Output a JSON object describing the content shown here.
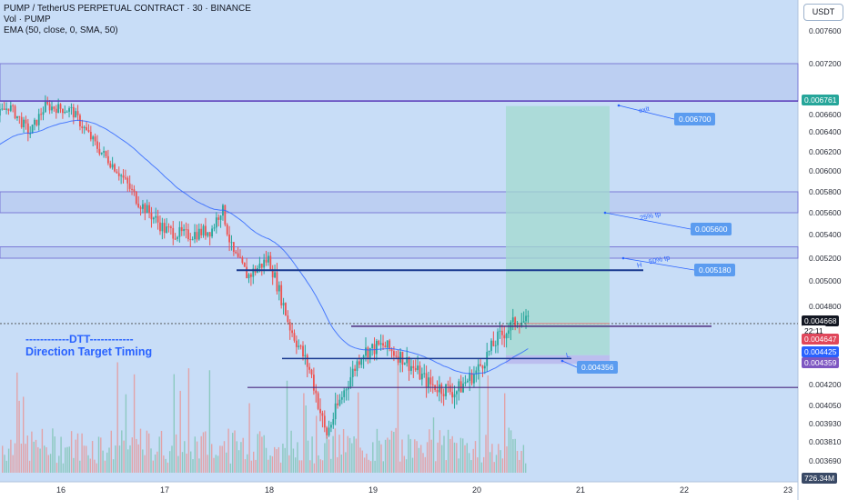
{
  "header": {
    "symbol_line": "PUMP / TetherUS PERPETUAL CONTRACT · 30 · BINANCE",
    "vol_line": "Vol · PUMP",
    "ema_line": "EMA (50, close, 0, SMA, 50)"
  },
  "currency_button": "USDT",
  "watermark": {
    "line1": "------------DTT------------",
    "line2": "Direction Target Timing"
  },
  "price_axis_labels": [
    "0.007600",
    "0.007200",
    "0.006600",
    "0.006400",
    "0.006200",
    "0.006000",
    "0.005800",
    "0.005600",
    "0.005400",
    "0.005200",
    "0.005000",
    "0.004800",
    "0.004200",
    "0.004050",
    "0.003930",
    "0.003810",
    "0.003690"
  ],
  "price_badges": {
    "top_zone": "0.006761",
    "last_price": "0.004668",
    "countdown": "22:11",
    "red_line": "0.004647",
    "entry": "0.004425",
    "stop": "0.004359",
    "volume": "726.34M"
  },
  "annotations": {
    "exit_label": "exit",
    "exit_value": "0.006700",
    "tp25_label": "25% tp",
    "tp25_value": "0.005600",
    "tp50_label": "50% tp",
    "tp50_value": "0.005180",
    "h_label": "H",
    "l_label": "L",
    "low_value": "0.004356"
  },
  "chart_data": {
    "type": "candlestick",
    "title": "PUMP / TetherUS PERPETUAL CONTRACT · 30 · BINANCE",
    "x_labels": [
      "16",
      "17",
      "18",
      "19",
      "20",
      "21",
      "22",
      "23"
    ],
    "close_path_approx": [
      [
        15.1,
        0.00565
      ],
      [
        15.2,
        0.0061
      ],
      [
        15.35,
        0.00655
      ],
      [
        15.5,
        0.0067
      ],
      [
        15.7,
        0.0064
      ],
      [
        15.85,
        0.0067
      ],
      [
        16.1,
        0.00665
      ],
      [
        16.35,
        0.00625
      ],
      [
        16.55,
        0.006
      ],
      [
        16.75,
        0.0057
      ],
      [
        17.0,
        0.00545
      ],
      [
        17.2,
        0.0054
      ],
      [
        17.45,
        0.00545
      ],
      [
        17.55,
        0.00565
      ],
      [
        17.65,
        0.00525
      ],
      [
        17.8,
        0.00505
      ],
      [
        18.0,
        0.0052
      ],
      [
        18.2,
        0.00465
      ],
      [
        18.4,
        0.0043
      ],
      [
        18.55,
        0.00385
      ],
      [
        18.75,
        0.0042
      ],
      [
        18.9,
        0.00445
      ],
      [
        19.1,
        0.0045
      ],
      [
        19.3,
        0.0044
      ],
      [
        19.55,
        0.0042
      ],
      [
        19.8,
        0.00415
      ],
      [
        20.0,
        0.0043
      ],
      [
        20.2,
        0.00455
      ],
      [
        20.4,
        0.0047
      ],
      [
        20.5,
        0.004668
      ]
    ],
    "ema": {
      "name": "EMA (50, close, 0, SMA, 50)",
      "period": 50
    },
    "zones": [
      {
        "low": 0.00676,
        "high": 0.0072
      },
      {
        "low": 0.0056,
        "high": 0.0058
      },
      {
        "low": 0.0052,
        "high": 0.0053
      }
    ],
    "levels": [
      0.0067,
      0.0056,
      0.00518,
      0.004647,
      0.004425,
      0.004356
    ],
    "position": {
      "entry": 0.004425,
      "stop": 0.004359,
      "target": 0.0067
    },
    "last_price": 0.004668,
    "ylim": [
      0.00355,
      0.00775
    ]
  }
}
